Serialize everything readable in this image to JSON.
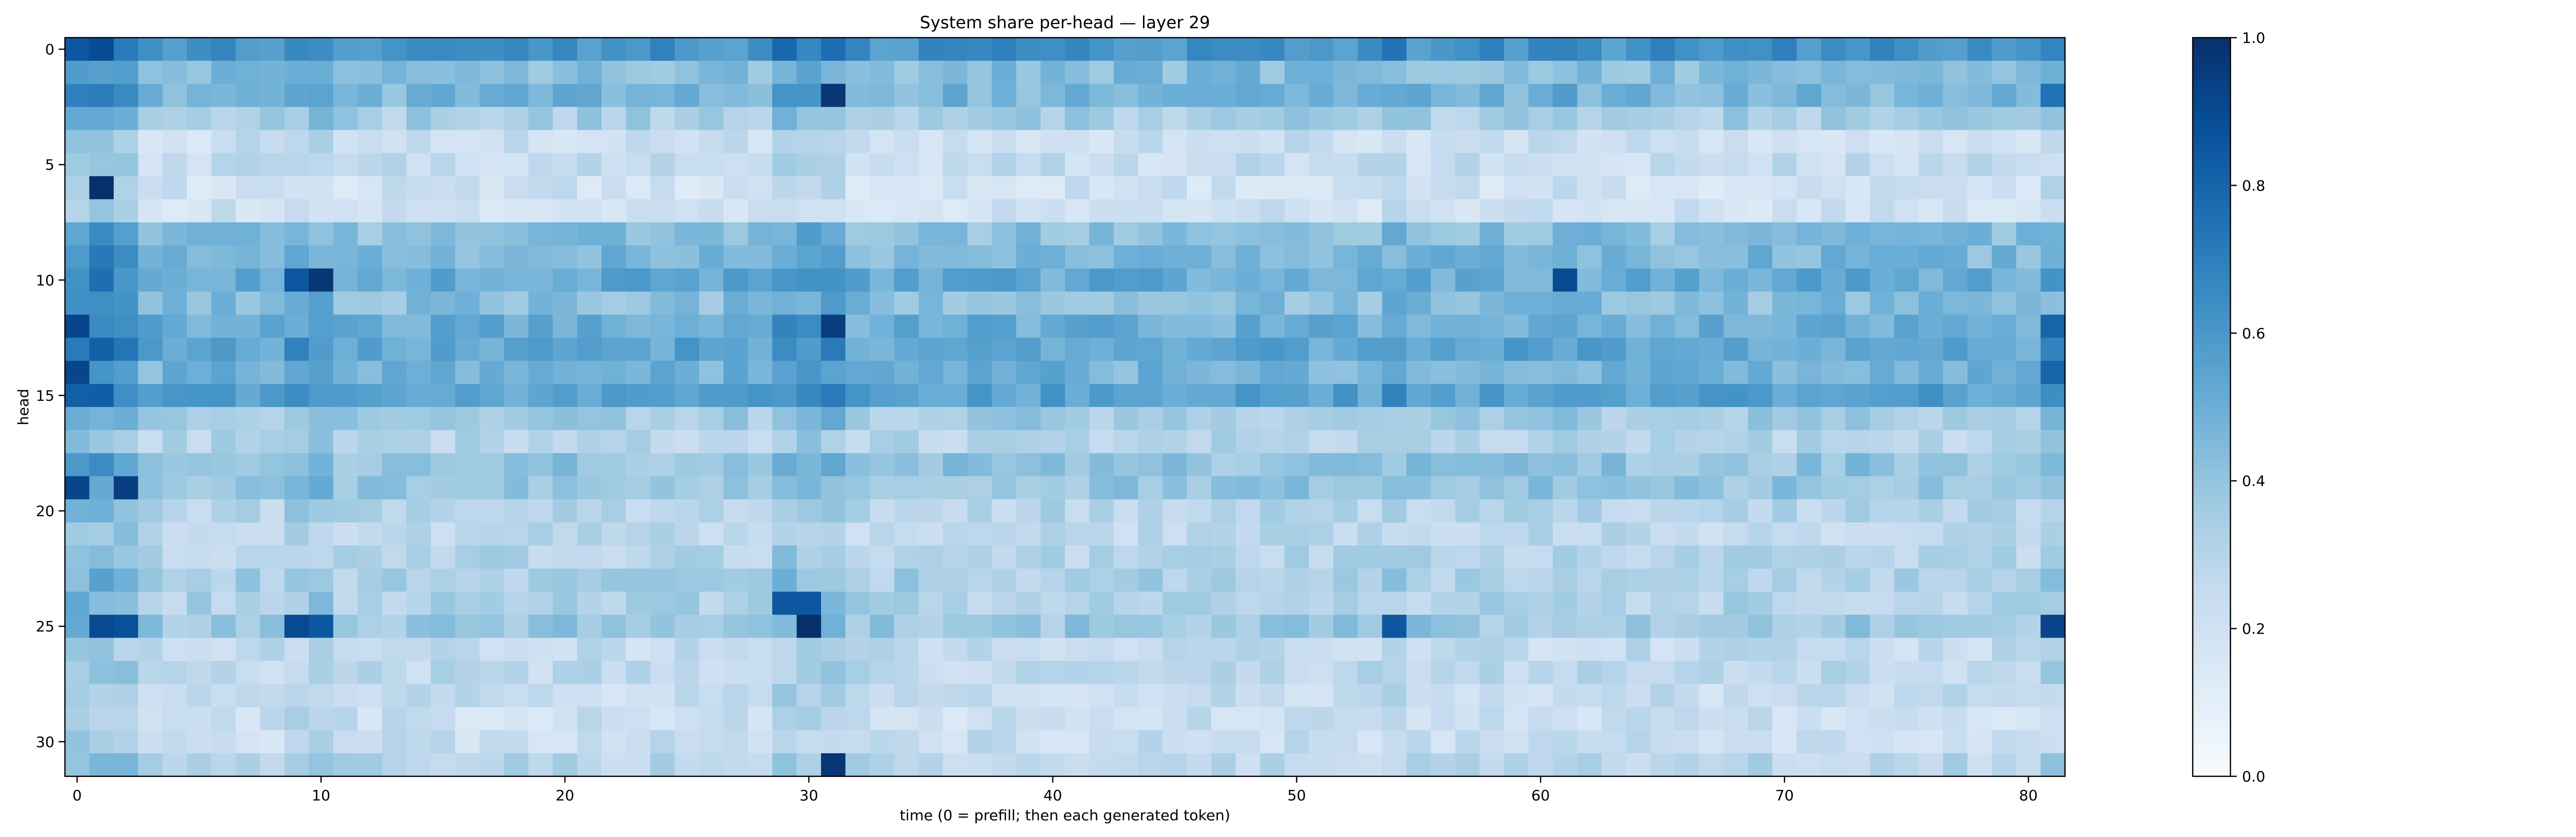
{
  "figure": {
    "title": "System share per-head — layer 29",
    "xlabel": "time (0 = prefill; then each generated token)",
    "ylabel": "head"
  },
  "colors": {
    "colormap": "Blues",
    "low": "#f7fbff",
    "high": "#08306b",
    "axis": "#000000",
    "background": "#ffffff"
  },
  "chart_data": {
    "type": "heatmap",
    "title": "System share per-head — layer 29",
    "xlabel": "time (0 = prefill; then each generated token)",
    "ylabel": "head",
    "x_range": [
      0,
      81
    ],
    "y_range": [
      0,
      31
    ],
    "y_inverted": true,
    "x_ticks": [
      "0",
      "10",
      "20",
      "30",
      "40",
      "50",
      "60",
      "70",
      "80"
    ],
    "y_ticks": [
      "0",
      "5",
      "10",
      "15",
      "20",
      "25",
      "30"
    ],
    "colorbar": {
      "range": [
        0.0,
        1.0
      ],
      "ticks": [
        "0.0",
        "0.2",
        "0.4",
        "0.6",
        "0.8",
        "1.0"
      ],
      "colormap": "Blues"
    },
    "grid": false,
    "row_means": [
      0.62,
      0.44,
      0.47,
      0.34,
      0.22,
      0.24,
      0.2,
      0.2,
      0.42,
      0.46,
      0.52,
      0.43,
      0.5,
      0.54,
      0.48,
      0.56,
      0.36,
      0.3,
      0.4,
      0.39,
      0.3,
      0.27,
      0.3,
      0.34,
      0.32,
      0.38,
      0.25,
      0.27,
      0.24,
      0.22,
      0.23,
      0.29
    ],
    "column_profile": {
      "times": [
        0,
        1,
        2,
        9,
        10,
        29,
        30,
        31,
        54,
        61,
        81
      ],
      "strength": [
        0.2,
        0.22,
        0.16,
        0.08,
        0.08,
        0.12,
        0.12,
        0.12,
        0.05,
        0.04,
        0.08
      ]
    },
    "hotspots": [
      {
        "time": 1,
        "head": 6,
        "value": 1.0
      },
      {
        "time": 0,
        "head": 12,
        "value": 0.92
      },
      {
        "time": 0,
        "head": 14,
        "value": 0.92
      },
      {
        "time": 0,
        "head": 19,
        "value": 0.92
      },
      {
        "time": 2,
        "head": 19,
        "value": 0.95
      },
      {
        "time": 1,
        "head": 25,
        "value": 0.9
      },
      {
        "time": 2,
        "head": 25,
        "value": 0.88
      },
      {
        "time": 9,
        "head": 10,
        "value": 0.85
      },
      {
        "time": 10,
        "head": 10,
        "value": 0.98
      },
      {
        "time": 9,
        "head": 25,
        "value": 0.9
      },
      {
        "time": 10,
        "head": 25,
        "value": 0.85
      },
      {
        "time": 30,
        "head": 25,
        "value": 1.0
      },
      {
        "time": 29,
        "head": 24,
        "value": 0.85
      },
      {
        "time": 30,
        "head": 24,
        "value": 0.85
      },
      {
        "time": 31,
        "head": 2,
        "value": 0.98
      },
      {
        "time": 31,
        "head": 12,
        "value": 0.95
      },
      {
        "time": 31,
        "head": 31,
        "value": 0.98
      },
      {
        "time": 61,
        "head": 10,
        "value": 0.9
      },
      {
        "time": 54,
        "head": 25,
        "value": 0.85
      },
      {
        "time": 81,
        "head": 25,
        "value": 0.92
      },
      {
        "time": 81,
        "head": 12,
        "value": 0.8
      },
      {
        "time": 81,
        "head": 14,
        "value": 0.8
      },
      {
        "time": 81,
        "head": 2,
        "value": 0.75
      },
      {
        "time": 0,
        "head": 0,
        "value": 0.85
      }
    ]
  }
}
